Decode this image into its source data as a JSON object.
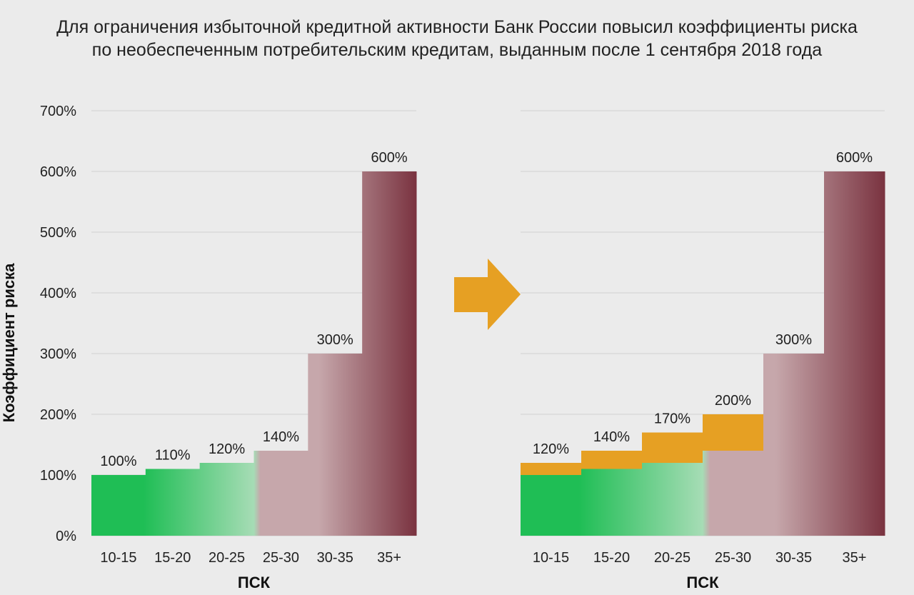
{
  "title": {
    "line1": "Для ограничения избыточной кредитной активности Банк России повысил коэффициенты риска",
    "line2": "по необеспеченным потребительским кредитам, выданным после 1 сентября 2018 года"
  },
  "colors": {
    "background": "#ebebeb",
    "green": "#1fbe55",
    "green_light": "#a6dcb5",
    "maroon_light": "#c6a7ab",
    "maroon": "#7a3340",
    "orange": "#e6a023",
    "grid": "#d6d6d6"
  },
  "icons": {
    "arrow": "arrow-right-icon"
  },
  "chart_data": [
    {
      "type": "bar",
      "ylabel": "Коэффициент риска",
      "xlabel": "ПСК",
      "ylim": [
        0,
        700
      ],
      "yticks": [
        "0%",
        "100%",
        "200%",
        "300%",
        "400%",
        "500%",
        "600%",
        "700%"
      ],
      "categories": [
        "10-15",
        "15-20",
        "20-25",
        "25-30",
        "30-35",
        "35+"
      ],
      "series": [
        {
          "values": [
            100,
            110,
            120,
            140,
            300,
            600
          ]
        }
      ],
      "data_labels": [
        "100%",
        "110%",
        "120%",
        "140%",
        "300%",
        "600%"
      ],
      "grid": true
    },
    {
      "type": "bar",
      "xlabel": "ПСК",
      "ylim": [
        0,
        700
      ],
      "categories": [
        "10-15",
        "15-20",
        "20-25",
        "25-30",
        "30-35",
        "35+"
      ],
      "series": [
        {
          "values": [
            100,
            110,
            120,
            140,
            300,
            600
          ]
        },
        {
          "values": [
            120,
            140,
            170,
            200,
            300,
            600
          ]
        }
      ],
      "data_labels": [
        "120%",
        "140%",
        "170%",
        "200%",
        "300%",
        "600%"
      ],
      "grid": true
    }
  ]
}
